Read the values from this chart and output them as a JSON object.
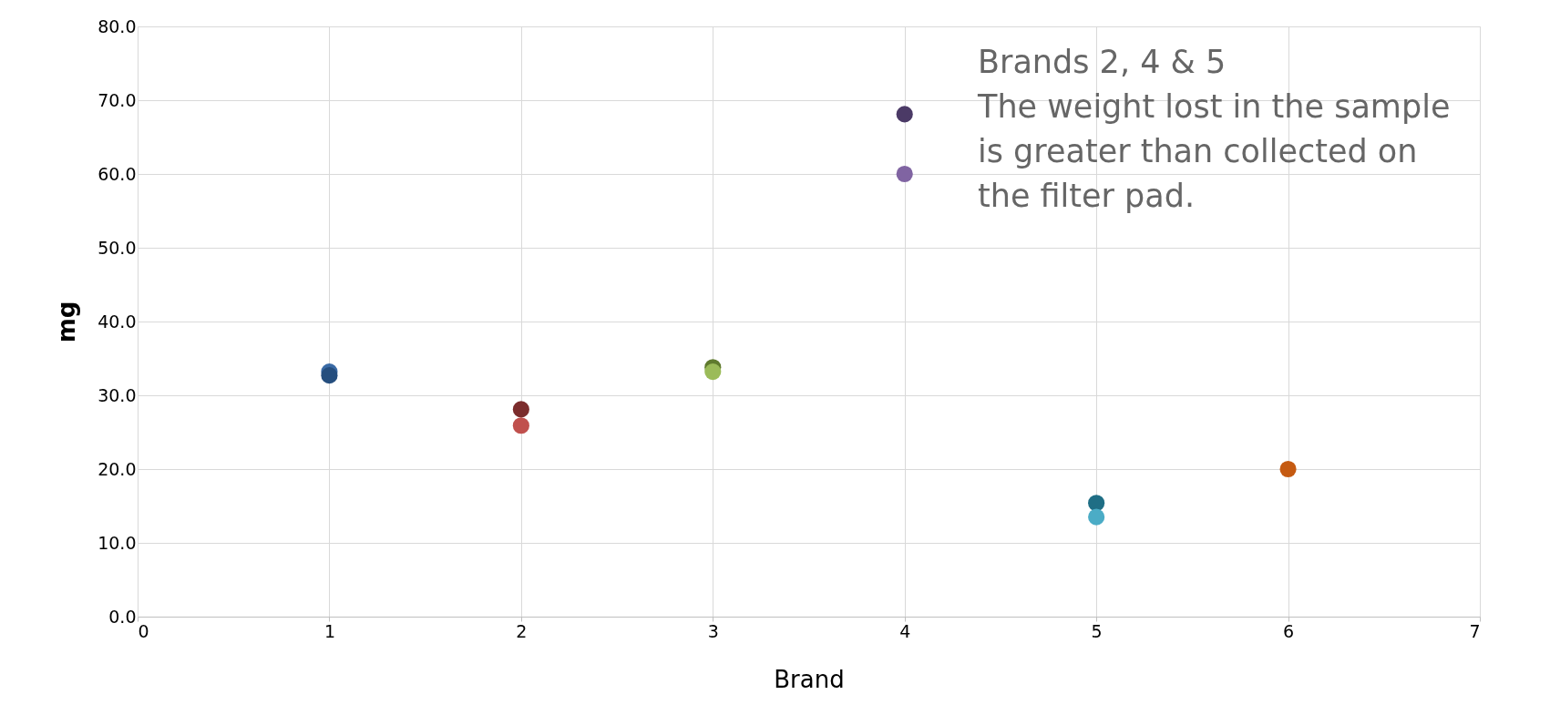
{
  "chart_data": {
    "type": "scatter",
    "xlabel": "Brand",
    "ylabel": "mg",
    "xlim": [
      0,
      7
    ],
    "xticks": [
      0,
      1,
      2,
      3,
      4,
      5,
      6,
      7
    ],
    "ylim": [
      0,
      80
    ],
    "yticks": [
      {
        "value": 0,
        "label": "0.0"
      },
      {
        "value": 10,
        "label": "10.0"
      },
      {
        "value": 20,
        "label": "20.0"
      },
      {
        "value": 30,
        "label": "30.0"
      },
      {
        "value": 40,
        "label": "40.0"
      },
      {
        "value": 50,
        "label": "50.0"
      },
      {
        "value": 60,
        "label": "60.0"
      },
      {
        "value": 70,
        "label": "70.0"
      },
      {
        "value": 80,
        "label": "80.0"
      }
    ],
    "grid": true,
    "marker": "circle",
    "series": [
      {
        "x": [
          1,
          1,
          2,
          2,
          3,
          3,
          4,
          4,
          5,
          5,
          6
        ],
        "values": [
          33.2,
          32.7,
          28.1,
          25.9,
          33.8,
          33.2,
          68.1,
          60.0,
          15.4,
          13.5,
          20.0
        ],
        "colors": [
          "#3a6aa5",
          "#254e7e",
          "#7b2c2c",
          "#c0504d",
          "#5f7a2e",
          "#9bbb59",
          "#4b3a66",
          "#8064a2",
          "#1f6e85",
          "#4bacc6",
          "#c55a11"
        ]
      }
    ],
    "annotations": [
      "Brands 2, 4 & 5",
      "The weight lost in the sample",
      "is greater than collected on",
      "the filter pad."
    ]
  }
}
